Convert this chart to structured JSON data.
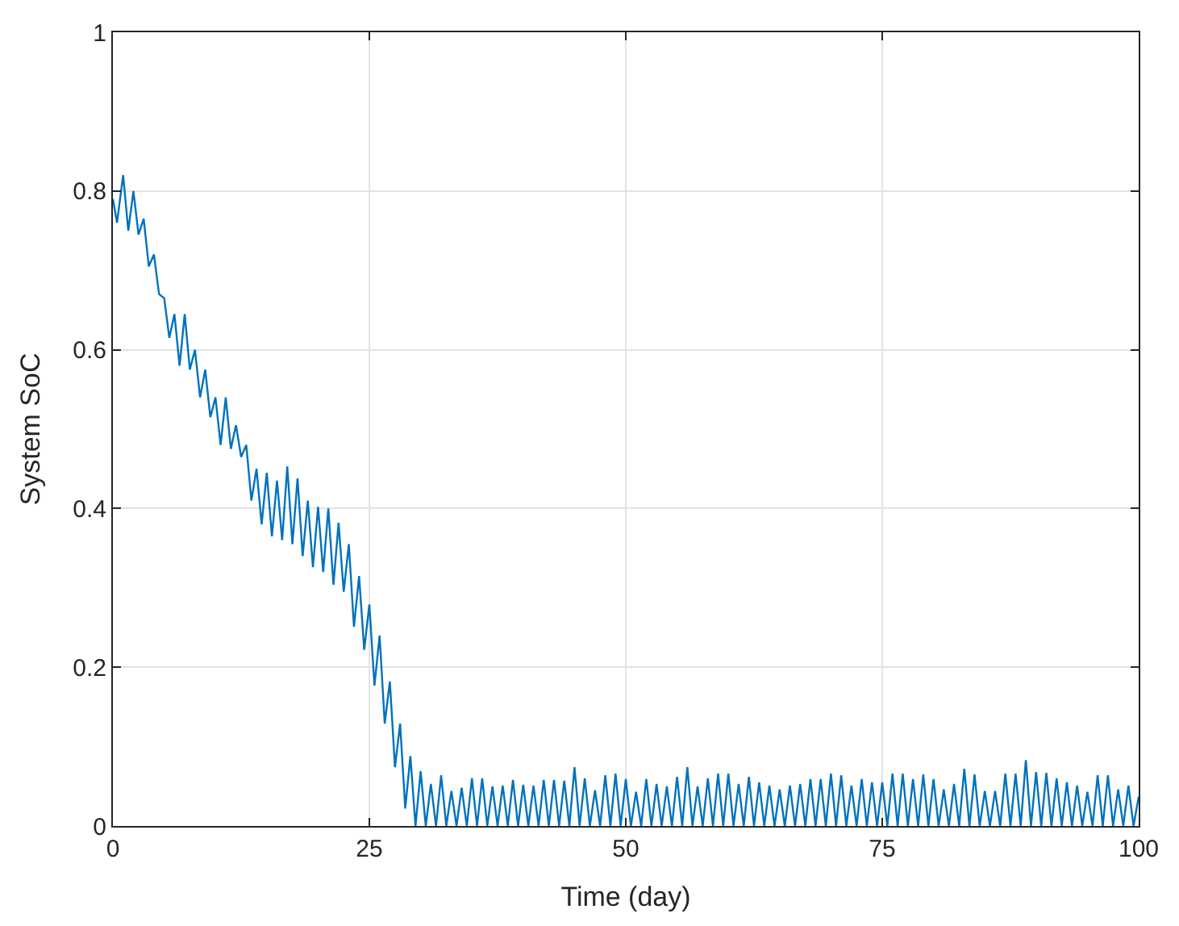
{
  "chart_data": {
    "type": "line",
    "xlabel": "Time (day)",
    "ylabel": "System SoC",
    "xlim": [
      0,
      100
    ],
    "xticks": [
      0,
      25,
      50,
      75,
      100
    ],
    "ylim": [
      0,
      1
    ],
    "yticks": [
      0,
      0.2,
      0.4,
      0.6,
      0.8,
      1
    ],
    "grid": true,
    "marker": "none",
    "line_style": "solid",
    "series": [
      {
        "color": "#0072bd",
        "x": [
          0,
          0.4,
          1,
          1.5,
          2,
          2.5,
          3,
          3.5,
          4,
          4.5,
          5,
          5.5,
          6,
          6.5,
          7,
          7.5,
          8,
          8.5,
          9,
          9.5,
          10,
          10.5,
          11,
          11.5,
          12,
          12.5,
          13,
          13.5,
          14,
          14.5,
          15,
          15.5,
          16,
          16.5,
          17,
          17.5,
          18,
          18.5,
          19,
          19.5,
          20,
          20.5,
          21,
          21.5,
          22,
          22.5,
          23,
          23.5,
          24,
          24.5,
          25,
          25.5,
          26,
          26.5,
          27,
          27.5,
          28,
          28.5,
          29,
          29.5,
          30,
          30.5,
          31,
          31.5,
          32,
          32.5,
          33,
          33.5,
          34,
          34.5,
          35,
          35.5,
          36,
          36.5,
          37,
          37.5,
          38,
          38.5,
          39,
          39.5,
          40,
          40.5,
          41,
          41.5,
          42,
          42.5,
          43,
          43.5,
          44,
          44.5,
          45,
          45.5,
          46,
          46.5,
          47,
          47.5,
          48,
          48.5,
          49,
          49.5,
          50,
          50.5,
          51,
          51.5,
          52,
          52.5,
          53,
          53.5,
          54,
          54.5,
          55,
          55.5,
          56,
          56.5,
          57,
          57.5,
          58,
          58.5,
          59,
          59.5,
          60,
          60.5,
          61,
          61.5,
          62,
          62.5,
          63,
          63.5,
          64,
          64.5,
          65,
          65.5,
          66,
          66.5,
          67,
          67.5,
          68,
          68.5,
          69,
          69.5,
          70,
          70.5,
          71,
          71.5,
          72,
          72.5,
          73,
          73.5,
          74,
          74.5,
          75,
          75.5,
          76,
          76.5,
          77,
          77.5,
          78,
          78.5,
          79,
          79.5,
          80,
          80.5,
          81,
          81.5,
          82,
          82.5,
          83,
          83.5,
          84,
          84.5,
          85,
          85.5,
          86,
          86.5,
          87,
          87.5,
          88,
          88.5,
          89,
          89.5,
          90,
          90.5,
          91,
          91.5,
          92,
          92.5,
          93,
          93.5,
          94,
          94.5,
          95,
          95.5,
          96,
          96.5,
          97,
          97.5,
          98,
          98.5,
          99,
          99.5,
          100
        ],
        "values": [
          0.79,
          0.76,
          0.82,
          0.75,
          0.8,
          0.745,
          0.765,
          0.705,
          0.72,
          0.67,
          0.665,
          0.615,
          0.645,
          0.58,
          0.645,
          0.575,
          0.6,
          0.54,
          0.575,
          0.515,
          0.54,
          0.48,
          0.54,
          0.475,
          0.505,
          0.465,
          0.48,
          0.41,
          0.45,
          0.38,
          0.445,
          0.365,
          0.435,
          0.36,
          0.453,
          0.355,
          0.438,
          0.34,
          0.41,
          0.326,
          0.402,
          0.32,
          0.4,
          0.304,
          0.382,
          0.295,
          0.355,
          0.251,
          0.315,
          0.222,
          0.279,
          0.177,
          0.24,
          0.129,
          0.182,
          0.074,
          0.129,
          0.022,
          0.088,
          0,
          0.069,
          0,
          0.053,
          0,
          0.064,
          0,
          0.044,
          0,
          0.048,
          0,
          0.06,
          0,
          0.06,
          0,
          0.05,
          0,
          0.051,
          0,
          0.058,
          0,
          0.052,
          0,
          0.051,
          0,
          0.058,
          0,
          0.058,
          0,
          0.057,
          0,
          0.074,
          0,
          0.06,
          0,
          0.045,
          0,
          0.064,
          0,
          0.066,
          0,
          0.059,
          0,
          0.043,
          0,
          0.059,
          0,
          0.053,
          0,
          0.05,
          0,
          0.062,
          0,
          0.074,
          0,
          0.05,
          0,
          0.06,
          0,
          0.066,
          0,
          0.066,
          0,
          0.053,
          0,
          0.062,
          0,
          0.055,
          0,
          0.051,
          0,
          0.046,
          0,
          0.051,
          0,
          0.053,
          0,
          0.059,
          0,
          0.059,
          0,
          0.066,
          0,
          0.064,
          0,
          0.051,
          0,
          0.059,
          0,
          0.055,
          0,
          0.055,
          0,
          0.066,
          0,
          0.066,
          0,
          0.059,
          0,
          0.065,
          0,
          0.059,
          0,
          0.046,
          0,
          0.053,
          0,
          0.072,
          0,
          0.065,
          0,
          0.044,
          0,
          0.044,
          0,
          0.066,
          0,
          0.066,
          0,
          0.083,
          0,
          0.068,
          0,
          0.067,
          0,
          0.06,
          0,
          0.055,
          0,
          0.051,
          0,
          0.043,
          0,
          0.064,
          0,
          0.064,
          0,
          0.046,
          0,
          0.051,
          0,
          0.037
        ]
      }
    ]
  }
}
